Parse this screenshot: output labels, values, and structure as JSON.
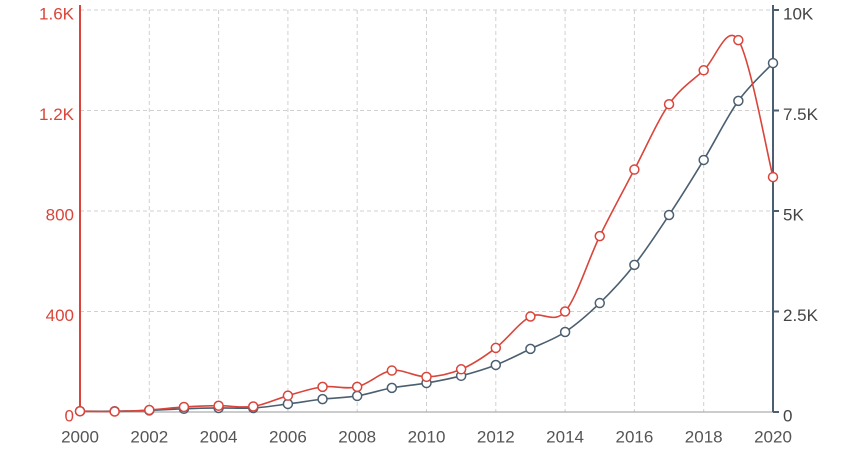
{
  "chart_data": {
    "type": "line",
    "x": [
      2000,
      2001,
      2002,
      2003,
      2004,
      2005,
      2006,
      2007,
      2008,
      2009,
      2010,
      2011,
      2012,
      2013,
      2014,
      2015,
      2016,
      2017,
      2018,
      2019,
      2020
    ],
    "xlim": [
      2000,
      2020
    ],
    "xticks": [
      2000,
      2002,
      2004,
      2006,
      2008,
      2010,
      2012,
      2014,
      2016,
      2018,
      2020
    ],
    "ylim": [
      0,
      1600
    ],
    "yticks": [
      0,
      400,
      800,
      {
        "value": 1200,
        "label": "1.2K"
      },
      {
        "value": 1600,
        "label": "1.6K"
      }
    ],
    "y2lim": [
      0,
      10000
    ],
    "y2ticks": [
      0,
      {
        "value": 2500,
        "label": "2.5K"
      },
      {
        "value": 5000,
        "label": "5K"
      },
      {
        "value": 7500,
        "label": "7.5K"
      },
      {
        "value": 10000,
        "label": "10K"
      }
    ],
    "grid": true,
    "series": [
      {
        "color": "#d9453b",
        "values": [
          3,
          2,
          8,
          20,
          25,
          22,
          65,
          100,
          100,
          165,
          140,
          170,
          255,
          380,
          400,
          700,
          965,
          1225,
          1360,
          1480,
          935
        ]
      },
      {
        "color": "#4b5f70",
        "axis": "y2",
        "values": [
          20,
          20,
          40,
          80,
          100,
          100,
          200,
          320,
          400,
          600,
          720,
          900,
          1170,
          1570,
          1990,
          2710,
          3660,
          4900,
          6270,
          7740,
          8680
        ]
      }
    ]
  }
}
